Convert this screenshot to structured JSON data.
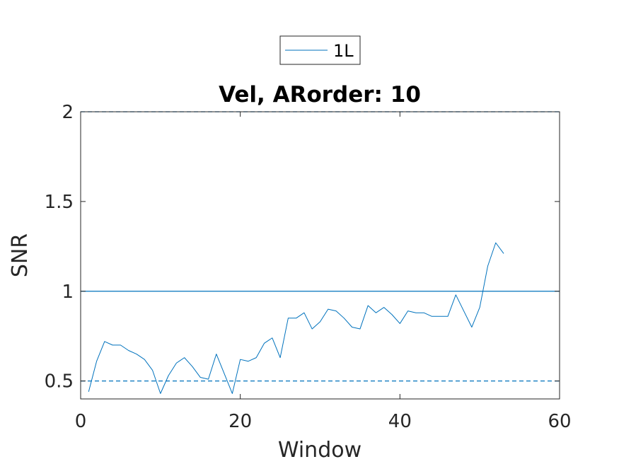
{
  "chart_data": {
    "type": "line",
    "title": "Vel, ARorder: 10",
    "xlabel": "Window",
    "ylabel": "SNR",
    "xlim": [
      0,
      60
    ],
    "ylim": [
      0.4,
      2
    ],
    "xticks": [
      0,
      20,
      40,
      60
    ],
    "xtick_labels": [
      "0",
      "20",
      "40",
      "60"
    ],
    "yticks": [
      0.5,
      1,
      1.5,
      2
    ],
    "ytick_labels": [
      "0.5",
      "1",
      "1.5",
      "2"
    ],
    "grid": false,
    "legend_position": "top-center",
    "series": [
      {
        "name": "1L",
        "color": "#0072bd",
        "x": [
          1,
          2,
          3,
          4,
          5,
          6,
          7,
          8,
          9,
          10,
          11,
          12,
          13,
          14,
          15,
          16,
          17,
          18,
          19,
          20,
          21,
          22,
          23,
          24,
          25,
          26,
          27,
          28,
          29,
          30,
          31,
          32,
          33,
          34,
          35,
          36,
          37,
          38,
          39,
          40,
          41,
          42,
          43,
          44,
          45,
          46,
          47,
          48,
          49,
          50,
          51,
          52,
          53
        ],
        "y": [
          0.44,
          0.61,
          0.72,
          0.7,
          0.7,
          0.67,
          0.65,
          0.62,
          0.56,
          0.43,
          0.53,
          0.6,
          0.63,
          0.58,
          0.52,
          0.51,
          0.65,
          0.54,
          0.43,
          0.62,
          0.61,
          0.63,
          0.71,
          0.74,
          0.63,
          0.85,
          0.85,
          0.88,
          0.79,
          0.83,
          0.9,
          0.89,
          0.85,
          0.8,
          0.79,
          0.92,
          0.88,
          0.91,
          0.87,
          0.82,
          0.89,
          0.88,
          0.88,
          0.86,
          0.86,
          0.86,
          0.98,
          0.89,
          0.8,
          0.91,
          1.14,
          1.27,
          1.21
        ]
      }
    ],
    "reference_lines": [
      {
        "y": 1,
        "style": "solid",
        "color": "#0072bd"
      },
      {
        "y": 0.5,
        "style": "dashed",
        "color": "#0072bd"
      },
      {
        "y": 2,
        "style": "dashed",
        "color": "#0072bd"
      }
    ]
  }
}
